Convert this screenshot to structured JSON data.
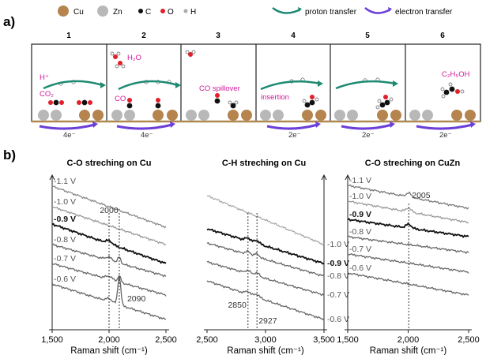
{
  "panel_a": {
    "label": "a)",
    "legend": {
      "cu": "Cu",
      "zn": "Zn",
      "c": "C",
      "o": "O",
      "h": "H",
      "proton": "proton transfer",
      "electron": "electron transfer"
    },
    "steps": [
      "1",
      "2",
      "3",
      "4",
      "5",
      "6"
    ],
    "annotations": {
      "h_plus": "H⁺",
      "h2o": "H₂O",
      "co2": "CO₂",
      "co": "CO",
      "co_spillover": "CO spillover",
      "insertion": "insertion",
      "c2h5oh": "C₂H₅OH",
      "e4_1": "4e⁻",
      "e4_2": "4e⁻",
      "e2_4": "2e⁻",
      "e2_5": "2e⁻",
      "e2_6": "2e⁻"
    },
    "colors": {
      "cu": "#b5844f",
      "zn": "#b8b8b8",
      "c": "#111111",
      "o": "#e0202a",
      "proton": "#1e8a72",
      "electron": "#6b3fd8",
      "magenta": "#d0189a",
      "ground": "#b08850"
    }
  },
  "panel_b": {
    "label": "b)",
    "chart_data": [
      {
        "type": "line",
        "title": "C-O streching on Cu",
        "xlabel": "Raman shift (cm⁻¹)",
        "xlim": [
          1500,
          2500
        ],
        "xticks": [
          "1,500",
          "2,000",
          "2,500"
        ],
        "series": [
          {
            "name": "-1.1 V"
          },
          {
            "name": "-1.0 V"
          },
          {
            "name": "-0.9 V"
          },
          {
            "name": "-0.8 V"
          },
          {
            "name": "-0.7 V"
          },
          {
            "name": "-0.6 V"
          }
        ],
        "peak_labels": [
          {
            "text": "2000",
            "x": 2000
          },
          {
            "text": "2090",
            "x": 2090
          }
        ]
      },
      {
        "type": "line",
        "title": "C-H streching on Cu",
        "xlabel": "Raman shift (cm⁻¹)",
        "xlim": [
          2500,
          3500
        ],
        "xticks": [
          "2,500",
          "3,000",
          "3,500"
        ],
        "series": [
          {
            "name": "-1.0 V"
          },
          {
            "name": "-0.9 V"
          },
          {
            "name": "-0.8 V"
          },
          {
            "name": "-0.7 V"
          },
          {
            "name": "-0.6 V"
          }
        ],
        "peak_labels": [
          {
            "text": "2850",
            "x": 2850
          },
          {
            "text": "2927",
            "x": 2927
          }
        ]
      },
      {
        "type": "line",
        "title": "C-O streching on CuZn",
        "xlabel": "Raman shift (cm⁻¹)",
        "xlim": [
          1500,
          2500
        ],
        "xticks": [
          "1,500",
          "2,000",
          "2,500"
        ],
        "series": [
          {
            "name": "-1.1 V"
          },
          {
            "name": "-1.0 V"
          },
          {
            "name": "-0.9 V"
          },
          {
            "name": "-0.8 V"
          },
          {
            "name": "-0.7 V"
          },
          {
            "name": "-0.6 V"
          }
        ],
        "peak_labels": [
          {
            "text": "2005",
            "x": 2005
          }
        ]
      }
    ]
  }
}
